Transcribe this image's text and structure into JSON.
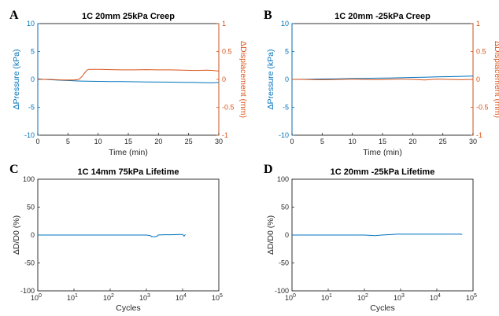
{
  "figure": {
    "colors": {
      "blue": "#0072BD",
      "orange": "#D95319",
      "axis": "#262626",
      "frame": "#000000"
    }
  },
  "chart_data": [
    {
      "panel": "A",
      "type": "line",
      "title": "1C 20mm 25kPa Creep",
      "xlabel": "Time (min)",
      "ylabel": "ΔPressure (kPa)",
      "ylabel2": "ΔDisplacement (mm)",
      "xlim": [
        0,
        30
      ],
      "ylim": [
        -10,
        10
      ],
      "y2lim": [
        -1,
        1
      ],
      "xticks": [
        "0",
        "5",
        "10",
        "15",
        "20",
        "25",
        "30"
      ],
      "yticks": [
        "-10",
        "-5",
        "0",
        "5",
        "10"
      ],
      "y2ticks": [
        "-1",
        "-0.5",
        "0",
        "0.5",
        "1"
      ],
      "series": [
        {
          "axis": "left",
          "color": "blue",
          "x": [
            0,
            1,
            2,
            3,
            4,
            5,
            6,
            7,
            8,
            10,
            12,
            14,
            16,
            18,
            20,
            22,
            24,
            26,
            28,
            29,
            30
          ],
          "y": [
            0.1,
            0.0,
            -0.05,
            -0.1,
            -0.15,
            -0.2,
            -0.25,
            -0.3,
            -0.32,
            -0.35,
            -0.38,
            -0.4,
            -0.42,
            -0.45,
            -0.48,
            -0.5,
            -0.52,
            -0.55,
            -0.6,
            -0.62,
            -0.55
          ]
        },
        {
          "axis": "right",
          "color": "orange",
          "x": [
            0,
            1,
            2,
            3,
            4,
            5,
            6,
            6.8,
            7.3,
            7.8,
            8.2,
            8.5,
            10,
            12,
            14,
            16,
            18,
            20,
            22,
            24,
            26,
            28,
            29,
            30
          ],
          "y": [
            0.0,
            0.0,
            0.0,
            -0.005,
            -0.01,
            -0.01,
            -0.01,
            0.0,
            0.05,
            0.12,
            0.17,
            0.18,
            0.18,
            0.175,
            0.17,
            0.17,
            0.175,
            0.17,
            0.17,
            0.165,
            0.16,
            0.165,
            0.16,
            0.15
          ]
        }
      ]
    },
    {
      "panel": "B",
      "type": "line",
      "title": "1C 20mm -25kPa Creep",
      "xlabel": "Time (min)",
      "ylabel": "ΔPressure (kPa)",
      "ylabel2": "ΔDisplacement (mm)",
      "xlim": [
        0,
        30
      ],
      "ylim": [
        -10,
        10
      ],
      "y2lim": [
        -1,
        1
      ],
      "xticks": [
        "0",
        "5",
        "10",
        "15",
        "20",
        "25",
        "30"
      ],
      "yticks": [
        "-10",
        "-5",
        "0",
        "5",
        "10"
      ],
      "y2ticks": [
        "-1",
        "-0.5",
        "0",
        "0.5",
        "1"
      ],
      "series": [
        {
          "axis": "left",
          "color": "blue",
          "x": [
            0,
            2,
            4,
            6,
            8,
            10,
            12,
            14,
            16,
            18,
            20,
            22,
            24,
            26,
            28,
            30
          ],
          "y": [
            0.0,
            0.02,
            0.05,
            0.08,
            0.1,
            0.15,
            0.18,
            0.22,
            0.25,
            0.3,
            0.35,
            0.4,
            0.45,
            0.5,
            0.55,
            0.6
          ]
        },
        {
          "axis": "right",
          "color": "orange",
          "x": [
            0,
            2,
            4,
            6,
            8,
            10,
            12,
            14,
            16,
            18,
            20,
            22,
            24,
            26,
            28,
            30
          ],
          "y": [
            0.0,
            0.0,
            -0.005,
            -0.005,
            0.0,
            0.005,
            0.0,
            -0.005,
            0.0,
            0.005,
            0.0,
            -0.01,
            0.005,
            0.0,
            -0.005,
            0.0
          ]
        }
      ]
    },
    {
      "panel": "C",
      "type": "line",
      "title": "1C 14mm 75kPa Lifetime",
      "xlabel": "Cycles",
      "ylabel": "ΔD/D0 (%)",
      "xscale": "log",
      "xlim": [
        1,
        100000
      ],
      "ylim": [
        -100,
        100
      ],
      "xticks": [
        {
          "base": "10",
          "exp": "0"
        },
        {
          "base": "10",
          "exp": "1"
        },
        {
          "base": "10",
          "exp": "2"
        },
        {
          "base": "10",
          "exp": "3"
        },
        {
          "base": "10",
          "exp": "4"
        },
        {
          "base": "10",
          "exp": "5"
        }
      ],
      "yticks": [
        "-100",
        "-50",
        "0",
        "50",
        "100"
      ],
      "series": [
        {
          "axis": "left",
          "color": "blue",
          "x": [
            1,
            3,
            10,
            30,
            100,
            300,
            1000,
            1300,
            1400,
            1500,
            1800,
            2000,
            2100,
            3000,
            5000,
            8000,
            10000,
            11000,
            12000
          ],
          "y": [
            0,
            0,
            0,
            0,
            0,
            0,
            0,
            -1,
            -3,
            -3,
            -3,
            -2,
            0,
            0.5,
            0.5,
            1,
            1,
            -2,
            1
          ]
        }
      ]
    },
    {
      "panel": "D",
      "type": "line",
      "title": "1C 20mm -25kPa Lifetime",
      "xlabel": "Cycles",
      "ylabel": "ΔD/D0 (%)",
      "xscale": "log",
      "xlim": [
        1,
        100000
      ],
      "ylim": [
        -100,
        100
      ],
      "xticks": [
        {
          "base": "10",
          "exp": "0"
        },
        {
          "base": "10",
          "exp": "1"
        },
        {
          "base": "10",
          "exp": "2"
        },
        {
          "base": "10",
          "exp": "3"
        },
        {
          "base": "10",
          "exp": "4"
        },
        {
          "base": "10",
          "exp": "5"
        }
      ],
      "yticks": [
        "-100",
        "-50",
        "0",
        "50",
        "100"
      ],
      "series": [
        {
          "axis": "left",
          "color": "blue",
          "x": [
            1,
            3,
            10,
            30,
            100,
            200,
            300,
            600,
            800,
            1000,
            3000,
            10000,
            30000,
            45000,
            50000
          ],
          "y": [
            0,
            0,
            0,
            0,
            0,
            -1,
            0,
            1,
            1.5,
            1.5,
            1.5,
            1.5,
            1.5,
            1.5,
            1
          ]
        }
      ]
    }
  ]
}
